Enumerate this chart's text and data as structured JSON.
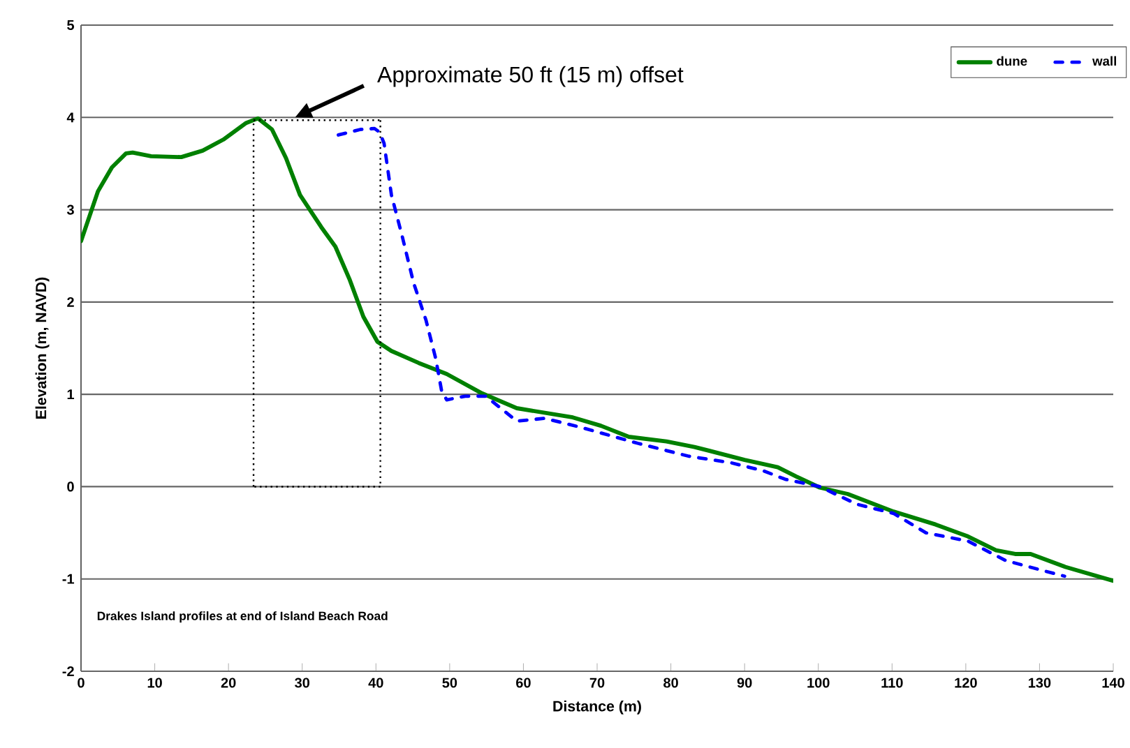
{
  "chart_data": {
    "type": "line",
    "xlabel": "Distance (m)",
    "ylabel": "Elevation (m, NAVD)",
    "xlim": [
      0,
      140
    ],
    "xticks": [
      0,
      10,
      20,
      30,
      40,
      50,
      60,
      70,
      80,
      90,
      100,
      110,
      120,
      130,
      140
    ],
    "ylim": [
      -2,
      5
    ],
    "yticks": [
      -2,
      -1,
      0,
      1,
      2,
      3,
      4,
      5
    ],
    "grid": "y",
    "legend": "top right",
    "marker": "none",
    "annotations": [
      "Approximate 50 ft (15 m) offset",
      "Drakes Island profiles at end of Island Beach Road"
    ],
    "series": [
      {
        "name": "dune",
        "color": "#008000",
        "line_style": "solid",
        "x": [
          0,
          2.3,
          4.2,
          6.1,
          7.0,
          9.5,
          13.6,
          16.5,
          19.3,
          22.4,
          24.0,
          25.9,
          27.8,
          29.7,
          32.6,
          34.5,
          36.4,
          38.3,
          40.2,
          42.1,
          45.8,
          49.6,
          54.4,
          59.1,
          66.7,
          70.5,
          74.3,
          79.4,
          83.2,
          90.0,
          94.5,
          97.0,
          100.2,
          104.0,
          110.2,
          115.9,
          120.3,
          124.1,
          126.7,
          128.8,
          133.5,
          140
        ],
        "values": [
          2.66,
          3.2,
          3.46,
          3.61,
          3.62,
          3.58,
          3.57,
          3.64,
          3.76,
          3.94,
          3.99,
          3.87,
          3.56,
          3.16,
          2.81,
          2.6,
          2.25,
          1.84,
          1.57,
          1.47,
          1.34,
          1.22,
          1.01,
          0.85,
          0.75,
          0.66,
          0.54,
          0.49,
          0.43,
          0.29,
          0.21,
          0.11,
          -0.01,
          -0.08,
          -0.27,
          -0.41,
          -0.54,
          -0.69,
          -0.73,
          -0.73,
          -0.87,
          -1.02
        ]
      },
      {
        "name": "wall",
        "color": "#0000ff",
        "line_style": "dashed",
        "x": [
          34.9,
          37.9,
          39.8,
          40.5,
          41.1,
          42.1,
          43.6,
          45.1,
          46.8,
          48.1,
          48.9,
          49.6,
          52.1,
          54.9,
          59.1,
          62.9,
          67.9,
          75.5,
          82.4,
          88.1,
          92.6,
          95.5,
          100.2,
          105.2,
          110.2,
          114.6,
          120.3,
          125.4,
          130.5,
          133.4
        ],
        "values": [
          3.81,
          3.87,
          3.88,
          3.84,
          3.72,
          3.16,
          2.7,
          2.21,
          1.8,
          1.39,
          1.04,
          0.94,
          0.98,
          0.98,
          0.71,
          0.74,
          0.64,
          0.47,
          0.33,
          0.26,
          0.17,
          0.08,
          0.0,
          -0.19,
          -0.29,
          -0.5,
          -0.59,
          -0.8,
          -0.91,
          -0.97
        ]
      }
    ]
  }
}
